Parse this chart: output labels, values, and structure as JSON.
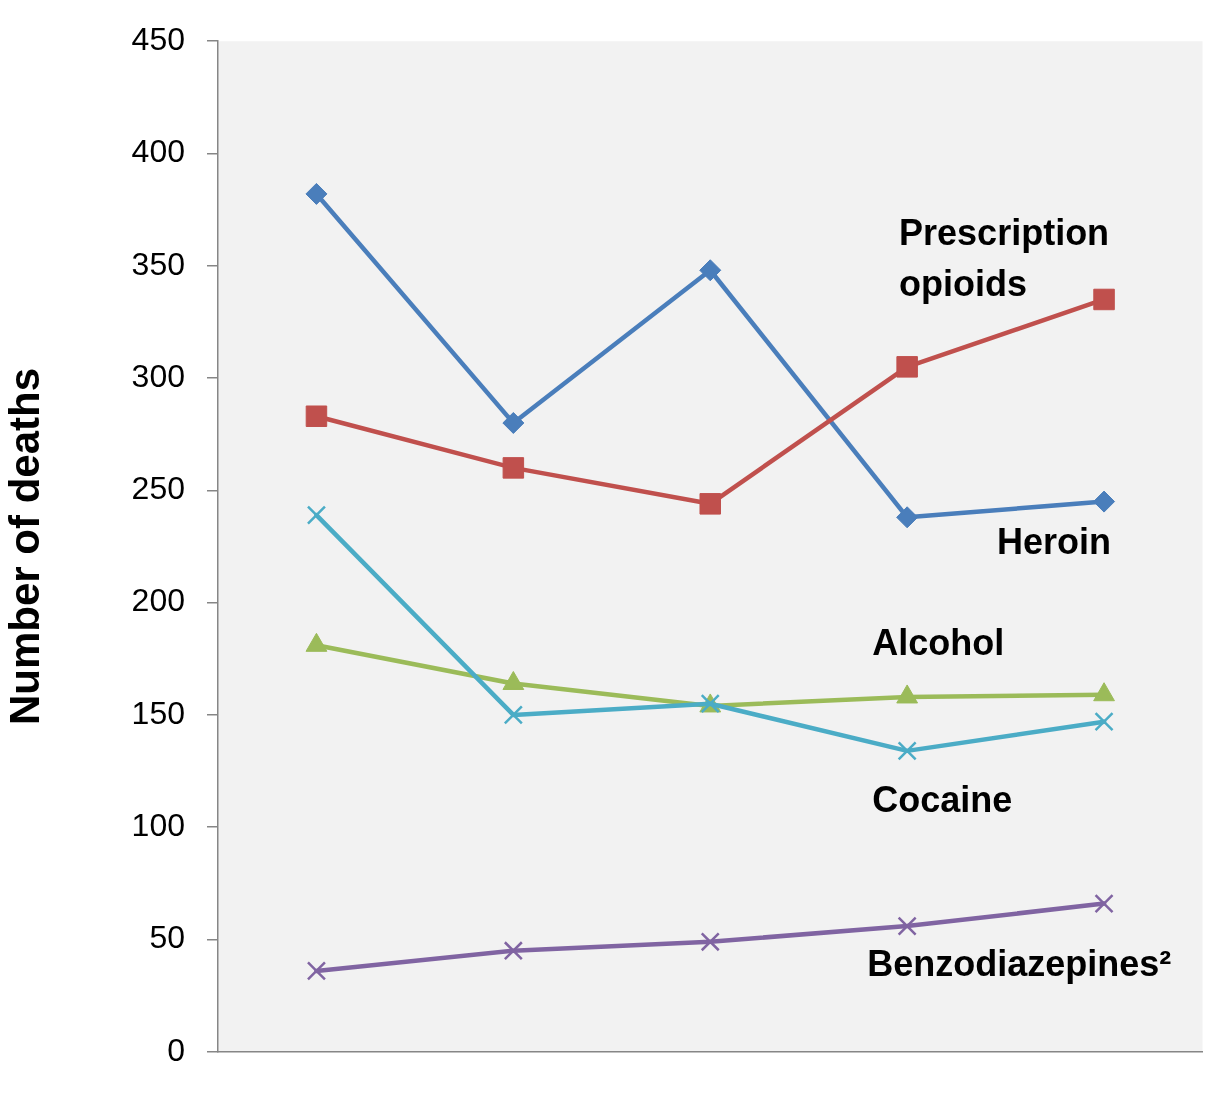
{
  "chart_data": {
    "type": "line",
    "ylabel": "Number of deaths",
    "categories": [
      null,
      null,
      null,
      null,
      null
    ],
    "ylim": [
      0,
      450
    ],
    "yticks": [
      0,
      50,
      100,
      150,
      200,
      250,
      300,
      350,
      400,
      450
    ],
    "tick_labels": "y",
    "series": [
      {
        "name": "Heroin",
        "color": "#4a7ebb",
        "marker": "diamond",
        "values": [
          382,
          280,
          348,
          238,
          245
        ]
      },
      {
        "name": "Prescription opioids",
        "color": "#c0504d",
        "marker": "square",
        "values": [
          283,
          260,
          244,
          305,
          335
        ]
      },
      {
        "name": "Alcohol",
        "color": "#9bbb59",
        "marker": "triangle",
        "values": [
          181,
          164,
          154,
          158,
          159
        ]
      },
      {
        "name": "Benzodiazepines²",
        "color": "#8064a2",
        "marker": "cross",
        "values": [
          36,
          45,
          49,
          56,
          66
        ]
      },
      {
        "name": "Cocaine",
        "color": "#4bacc6",
        "marker": "cross",
        "values": [
          239,
          150,
          155,
          134,
          147
        ]
      }
    ]
  }
}
